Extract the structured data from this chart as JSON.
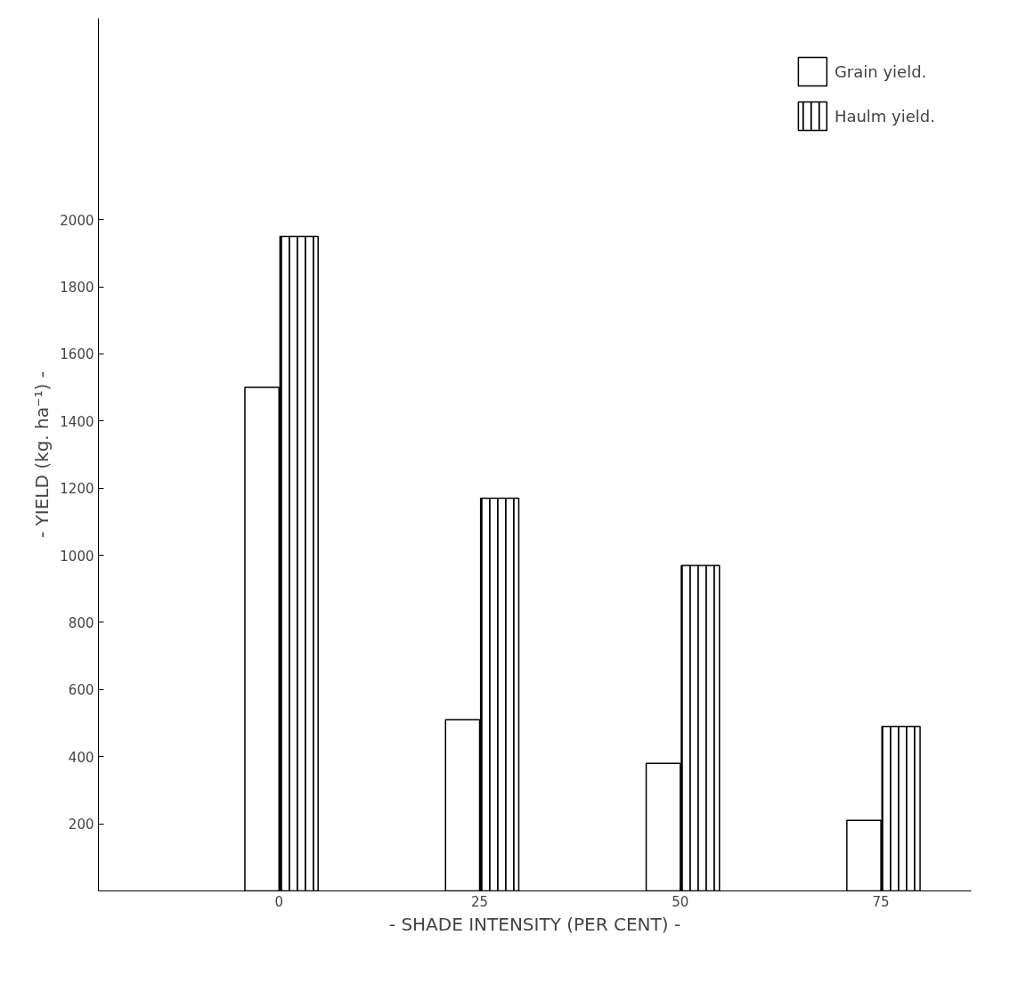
{
  "chart_data": {
    "type": "bar",
    "xlabel": "- SHADE INTENSITY (PER CENT) -",
    "ylabel": "- YIELD (kg. ha⁻¹) -",
    "categories": [
      "0",
      "25",
      "50",
      "75"
    ],
    "series": [
      {
        "name": "Grain yield.",
        "color": "#ffffff",
        "values": [
          1500,
          510,
          380,
          210
        ]
      },
      {
        "name": "Haulm yield.",
        "color": "#000000",
        "values": [
          1950,
          1170,
          970,
          490
        ]
      }
    ],
    "ylim": [
      0,
      2600
    ],
    "yticks": [
      200,
      400,
      600,
      800,
      1000,
      1200,
      1400,
      1600,
      1800,
      2000
    ],
    "grid": false,
    "legend": "top right"
  }
}
